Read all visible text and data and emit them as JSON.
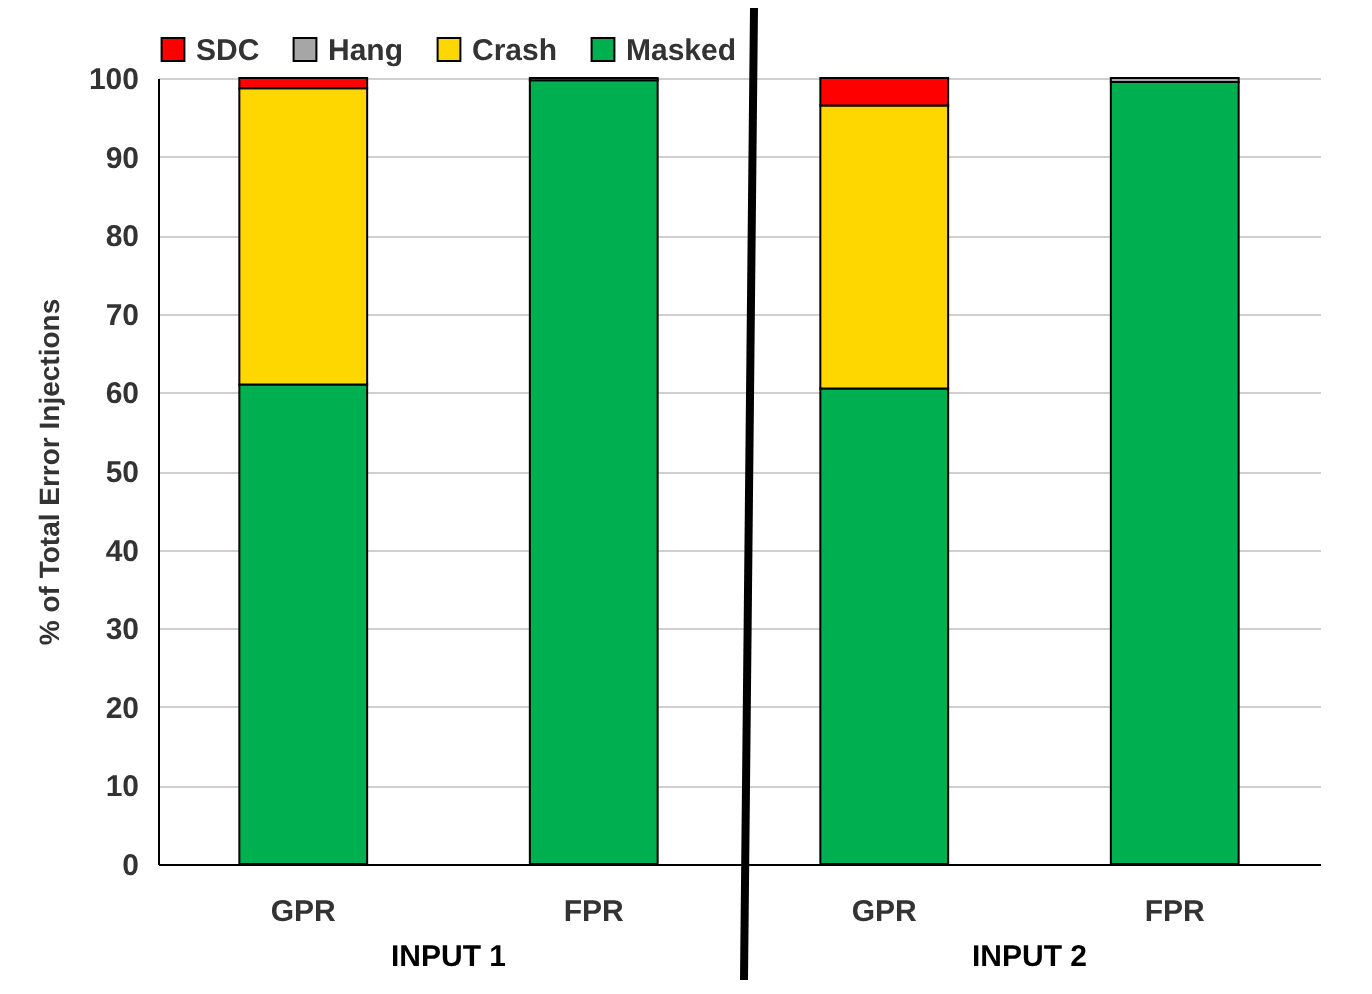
{
  "chart_data": {
    "type": "bar",
    "stacked": true,
    "ylabel": "% of Total Error Injections",
    "categories": [
      "GPR",
      "FPR",
      "GPR",
      "FPR"
    ],
    "series": [
      {
        "name": "Masked",
        "color": "#00b050",
        "values": [
          61,
          99.7,
          60.5,
          99.5
        ]
      },
      {
        "name": "Crash",
        "color": "#ffd700",
        "values": [
          37.7,
          0,
          36,
          0
        ]
      },
      {
        "name": "Hang",
        "color": "#a6a6a6",
        "values": [
          0,
          0.3,
          0,
          0.5
        ]
      },
      {
        "name": "SDC",
        "color": "#ff0000",
        "values": [
          1.3,
          0,
          3.5,
          0
        ]
      }
    ],
    "annotations": [
      {
        "text": "INPUT 1"
      },
      {
        "text": "INPUT 2"
      }
    ],
    "ylim": [
      0,
      100
    ],
    "yticks": [
      0,
      10,
      20,
      30,
      40,
      50,
      60,
      70,
      80,
      90,
      100
    ],
    "grid": "y",
    "legend": "top"
  }
}
